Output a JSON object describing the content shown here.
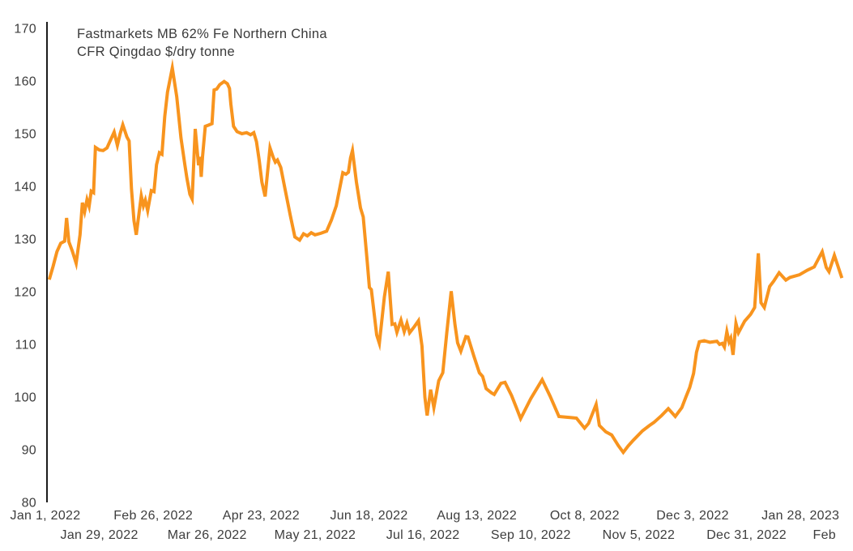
{
  "chart_data": {
    "type": "line",
    "title_line1": "Fastmarkets MB 62% Fe Northern China",
    "title_line2": "CFR Qingdao $/dry tonne",
    "series_name": "Fastmarkets MB 62% Fe Northern China CFR Qingdao $/dry tonne",
    "ylabel": "",
    "xlabel": "",
    "unit": "$/dry tonne",
    "grid": "off",
    "legend": "none",
    "line_color": "#F8941E",
    "axis_color": "#1c1c1c",
    "label_color": "#3d3d3d",
    "y_axis": {
      "min": 80,
      "max": 170,
      "step": 10,
      "tick_labels": [
        80,
        90,
        100,
        110,
        120,
        130,
        140,
        150,
        160,
        170
      ]
    },
    "x_axis_note": "x values are day offsets from Jan 1, 2022",
    "x_ticks_row1": [
      {
        "day": 0,
        "label": "Jan 1, 2022"
      },
      {
        "day": 56,
        "label": "Feb 26, 2022"
      },
      {
        "day": 112,
        "label": "Apr 23, 2022"
      },
      {
        "day": 168,
        "label": "Jun 18, 2022"
      },
      {
        "day": 224,
        "label": "Aug 13, 2022"
      },
      {
        "day": 280,
        "label": "Oct 8, 2022"
      },
      {
        "day": 336,
        "label": "Dec 3, 2022"
      },
      {
        "day": 392,
        "label": "Jan 28, 2023"
      }
    ],
    "x_ticks_row2": [
      {
        "day": 28,
        "label": "Jan 29, 2022"
      },
      {
        "day": 84,
        "label": "Mar 26, 2022"
      },
      {
        "day": 140,
        "label": "May 21, 2022"
      },
      {
        "day": 196,
        "label": "Jul 16, 2022"
      },
      {
        "day": 252,
        "label": "Sep 10, 2022"
      },
      {
        "day": 308,
        "label": "Nov 5, 2022"
      },
      {
        "day": 364,
        "label": "Dec 31, 2022"
      },
      {
        "day": 420,
        "label": "Feb"
      }
    ],
    "points": [
      [
        2,
        122.3
      ],
      [
        4,
        124.8
      ],
      [
        6,
        127.6
      ],
      [
        8,
        129.2
      ],
      [
        10,
        129.6
      ],
      [
        11,
        134
      ],
      [
        12.2,
        129.5
      ],
      [
        14,
        127.7
      ],
      [
        16,
        125.4
      ],
      [
        18,
        130.8
      ],
      [
        19.2,
        136.9
      ],
      [
        20.4,
        135.2
      ],
      [
        21.6,
        137.5
      ],
      [
        22.7,
        136.2
      ],
      [
        23.8,
        139.1
      ],
      [
        25,
        138.8
      ],
      [
        26,
        147.4
      ],
      [
        28,
        146.9
      ],
      [
        30,
        146.8
      ],
      [
        32,
        147.3
      ],
      [
        34.2,
        149.1
      ],
      [
        35.7,
        150.3
      ],
      [
        37.4,
        147.8
      ],
      [
        38.8,
        150
      ],
      [
        40.2,
        151.7
      ],
      [
        42.3,
        149.4
      ],
      [
        43.5,
        148.6
      ],
      [
        44.7,
        139.5
      ],
      [
        46,
        133.5
      ],
      [
        47.2,
        130.8
      ],
      [
        49.8,
        138.2
      ],
      [
        50.9,
        136.3
      ],
      [
        51.9,
        137.4
      ],
      [
        53.1,
        135.4
      ],
      [
        55,
        139.2
      ],
      [
        56.4,
        139
      ],
      [
        57.7,
        144.1
      ],
      [
        59.2,
        146.4
      ],
      [
        60.5,
        146.1
      ],
      [
        62,
        153.3
      ],
      [
        63.4,
        157.9
      ],
      [
        65.9,
        162.5
      ],
      [
        68.2,
        157
      ],
      [
        70.4,
        149.2
      ],
      [
        72.4,
        144.1
      ],
      [
        73.5,
        141.5
      ],
      [
        75,
        138.5
      ],
      [
        76.2,
        137.6
      ],
      [
        77.8,
        150.9
      ],
      [
        79.5,
        144
      ],
      [
        80.3,
        145.6
      ],
      [
        80.9,
        141.8
      ],
      [
        81.6,
        145.6
      ],
      [
        83,
        151.4
      ],
      [
        84.5,
        151.6
      ],
      [
        86.5,
        151.9
      ],
      [
        87.6,
        158.3
      ],
      [
        89,
        158.5
      ],
      [
        90.5,
        159.3
      ],
      [
        92.8,
        159.9
      ],
      [
        94.5,
        159.5
      ],
      [
        95.6,
        158.6
      ],
      [
        96.3,
        155.6
      ],
      [
        97.7,
        151.4
      ],
      [
        99.5,
        150.4
      ],
      [
        102,
        150
      ],
      [
        104.5,
        150.2
      ],
      [
        106.5,
        149.8
      ],
      [
        108.2,
        150.2
      ],
      [
        109.6,
        148.5
      ],
      [
        111,
        144.9
      ],
      [
        112.4,
        140.8
      ],
      [
        114.1,
        138.1
      ],
      [
        116.6,
        147.3
      ],
      [
        118.3,
        145.5
      ],
      [
        119.4,
        144.6
      ],
      [
        120.5,
        145
      ],
      [
        122.2,
        143.6
      ],
      [
        124.3,
        139.7
      ],
      [
        127.1,
        134.6
      ],
      [
        129.5,
        130.4
      ],
      [
        132,
        129.8
      ],
      [
        134,
        131
      ],
      [
        136,
        130.6
      ],
      [
        138,
        131.2
      ],
      [
        140,
        130.8
      ],
      [
        143,
        131.1
      ],
      [
        146,
        131.5
      ],
      [
        148.5,
        133.6
      ],
      [
        151,
        136.3
      ],
      [
        154.4,
        142.6
      ],
      [
        156,
        142.3
      ],
      [
        157.3,
        142.7
      ],
      [
        158.4,
        145.4
      ],
      [
        159.4,
        146.8
      ],
      [
        161.5,
        140.8
      ],
      [
        163.6,
        135.9
      ],
      [
        165,
        134.2
      ],
      [
        167.1,
        125.6
      ],
      [
        168.2,
        120.8
      ],
      [
        169.2,
        120.4
      ],
      [
        172,
        111.8
      ],
      [
        173.4,
        110.2
      ],
      [
        176,
        119
      ],
      [
        178,
        123.8
      ],
      [
        180,
        113.8
      ],
      [
        181.4,
        113.9
      ],
      [
        182.5,
        112.3
      ],
      [
        184.6,
        114.6
      ],
      [
        186.3,
        112.4
      ],
      [
        187.7,
        114
      ],
      [
        189.1,
        112.2
      ],
      [
        191.6,
        113.4
      ],
      [
        193.7,
        114.5
      ],
      [
        195.5,
        109.7
      ],
      [
        197,
        100
      ],
      [
        198.2,
        96.5
      ],
      [
        200,
        101.4
      ],
      [
        201.7,
        98
      ],
      [
        204.2,
        103.1
      ],
      [
        206.3,
        104.6
      ],
      [
        208.4,
        112.3
      ],
      [
        210.7,
        120.1
      ],
      [
        212.6,
        113.8
      ],
      [
        214,
        110.3
      ],
      [
        215.7,
        108.7
      ],
      [
        218.3,
        111.5
      ],
      [
        219.4,
        111.4
      ],
      [
        222.5,
        107.7
      ],
      [
        225.3,
        104.6
      ],
      [
        227,
        103.9
      ],
      [
        228.8,
        101.6
      ],
      [
        231.6,
        100.8
      ],
      [
        233,
        100.5
      ],
      [
        236.5,
        102.6
      ],
      [
        238.6,
        102.8
      ],
      [
        242,
        100.3
      ],
      [
        244.5,
        98
      ],
      [
        246.7,
        95.9
      ],
      [
        252,
        99.7
      ],
      [
        257.9,
        103.3
      ],
      [
        262,
        100.2
      ],
      [
        266.6,
        96.3
      ],
      [
        270,
        96.2
      ],
      [
        273,
        96.1
      ],
      [
        275.7,
        96
      ],
      [
        279.9,
        94.1
      ],
      [
        282,
        95
      ],
      [
        285.9,
        98.6
      ],
      [
        287.6,
        94.6
      ],
      [
        290.9,
        93.4
      ],
      [
        294,
        92.8
      ],
      [
        297.4,
        90.8
      ],
      [
        300,
        89.5
      ],
      [
        302.5,
        90.7
      ],
      [
        305.2,
        91.8
      ],
      [
        310,
        93.6
      ],
      [
        313.6,
        94.6
      ],
      [
        316,
        95.2
      ],
      [
        319.9,
        96.5
      ],
      [
        323.4,
        97.8
      ],
      [
        327,
        96.3
      ],
      [
        330.4,
        98
      ],
      [
        332.5,
        100
      ],
      [
        334.5,
        101.8
      ],
      [
        336.5,
        104.5
      ],
      [
        338,
        108.5
      ],
      [
        339.5,
        110.5
      ],
      [
        342,
        110.7
      ],
      [
        345,
        110.4
      ],
      [
        348.6,
        110.6
      ],
      [
        350,
        110
      ],
      [
        351.4,
        110.2
      ],
      [
        352.5,
        109.5
      ],
      [
        353.8,
        112.4
      ],
      [
        354.9,
        110.5
      ],
      [
        355.8,
        111.2
      ],
      [
        357,
        108
      ],
      [
        358.5,
        114
      ],
      [
        359.8,
        112.2
      ],
      [
        363,
        114.4
      ],
      [
        366.1,
        115.7
      ],
      [
        368.2,
        117
      ],
      [
        370.1,
        127.3
      ],
      [
        371.5,
        117.9
      ],
      [
        373.2,
        117
      ],
      [
        376,
        121
      ],
      [
        378.1,
        122
      ],
      [
        380.9,
        123.6
      ],
      [
        384.4,
        122.2
      ],
      [
        386.5,
        122.7
      ],
      [
        391.4,
        123.2
      ],
      [
        395.6,
        124.1
      ],
      [
        399.1,
        124.7
      ],
      [
        403.3,
        127.6
      ],
      [
        405.4,
        124.6
      ],
      [
        406.8,
        123.8
      ],
      [
        409.6,
        126.9
      ],
      [
        413.5,
        122.6
      ]
    ]
  }
}
